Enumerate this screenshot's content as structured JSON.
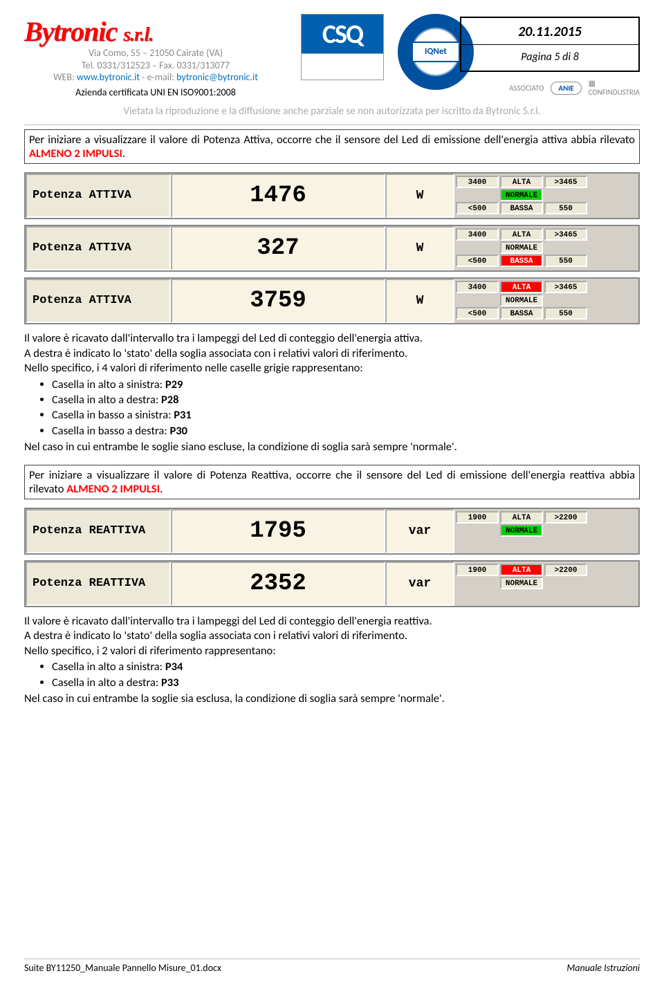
{
  "header": {
    "logo_text": "Bytronic",
    "logo_suffix": "s.r.l.",
    "address": "Via Como, 55 – 21050 Cairate (VA)",
    "phone": "Tel. 0331/312523 – Fax. 0331/313077",
    "web_prefix": "WEB: ",
    "web_url": "www.bytronic.it",
    "web_mid": " - e-mail: ",
    "web_email": "bytronic@bytronic.it",
    "cert": "Azienda certificata UNI EN ISO9001:2008",
    "csq": "CSQ",
    "iqnet": "IQNet",
    "date": "20.11.2015",
    "page": "Pagina 5 di 8",
    "associato": "ASSOCIATO",
    "anie": "ANIE",
    "conf": "CONFINDUSTRIA"
  },
  "vietata": "Vietata la riproduzione e la diffusione anche parziale se non autorizzata per iscritto da Bytronic S.r.l.",
  "notice1_a": "Per iniziare a visualizzare il valore di Potenza Attiva, occorre che il sensore del Led di emissione dell'energia attiva abbia rilevato ",
  "notice1_red": "ALMENO 2 IMPULSI",
  "notice1_b": ".",
  "rows": [
    {
      "label": "Potenza ATTIVA",
      "value": "1476",
      "unit": "W",
      "r1n": "3400",
      "r1l": "ALTA",
      "r1cl": "",
      "r1r": ">3465",
      "r2l": "NORMALE",
      "r2cl": "st-green",
      "r3n": "<500",
      "r3l": "BASSA",
      "r3cl": "",
      "r3r": "550"
    },
    {
      "label": "Potenza ATTIVA",
      "value": "327",
      "unit": "W",
      "r1n": "3400",
      "r1l": "ALTA",
      "r1cl": "",
      "r1r": ">3465",
      "r2l": "NORMALE",
      "r2cl": "",
      "r3n": "<500",
      "r3l": "BASSA",
      "r3cl": "st-red",
      "r3r": "550"
    },
    {
      "label": "Potenza ATTIVA",
      "value": "3759",
      "unit": "W",
      "r1n": "3400",
      "r1l": "ALTA",
      "r1cl": "st-red",
      "r1r": ">3465",
      "r2l": "NORMALE",
      "r2cl": "",
      "r3n": "<500",
      "r3l": "BASSA",
      "r3cl": "",
      "r3r": "550"
    }
  ],
  "body1_p1": "Il valore è ricavato dall'intervallo tra i lampeggi del Led di conteggio dell'energia attiva.",
  "body1_p2": "A destra è indicato lo 'stato' della soglia associata con i relativi valori di riferimento.",
  "body1_p3": "Nello specifico, i 4 valori di riferimento nelle caselle grigie rappresentano:",
  "body1_li": [
    "Casella in alto a sinistra: P29",
    "Casella in alto a destra: P28",
    "Casella in basso a sinistra: P31",
    "Casella in basso a destra: P30"
  ],
  "body1_li_bold": [
    "P29",
    "P28",
    "P31",
    "P30"
  ],
  "body1_p4": "Nel caso in cui entrambe le soglie siano escluse, la condizione di soglia sarà sempre 'normale'.",
  "notice2_a": "Per iniziare a visualizzare il valore di Potenza Reattiva, occorre che il sensore del Led di emissione dell'energia reattiva abbia rilevato ",
  "notice2_red": "ALMENO 2 IMPULSI",
  "notice2_b": ".",
  "rows2": [
    {
      "label": "Potenza REATTIVA",
      "value": "1795",
      "unit": "var",
      "r1n": "1900",
      "r1l": "ALTA",
      "r1cl": "",
      "r1r": ">2200",
      "r2l": "NORMALE",
      "r2cl": "st-green"
    },
    {
      "label": "Potenza REATTIVA",
      "value": "2352",
      "unit": "var",
      "r1n": "1900",
      "r1l": "ALTA",
      "r1cl": "st-red",
      "r1r": ">2200",
      "r2l": "NORMALE",
      "r2cl": ""
    }
  ],
  "body2_p1": "Il valore è ricavato dall'intervallo tra i lampeggi del Led di conteggio dell'energia reattiva.",
  "body2_p2": "A destra è indicato lo 'stato' della soglia associata con i relativi valori di riferimento.",
  "body2_p3": "Nello specifico, i 2 valori di riferimento rappresentano:",
  "body2_li": [
    "Casella in alto a sinistra: P34",
    "Casella in alto a destra: P33"
  ],
  "body2_li_bold": [
    "P34",
    "P33"
  ],
  "body2_p4": "Nel caso in cui entrambe la soglie sia esclusa, la condizione di soglia sarà sempre 'normale'.",
  "footer_left": "Suite BY11250_Manuale Pannello Misure_01.docx",
  "footer_right": "Manuale Istruzioni"
}
